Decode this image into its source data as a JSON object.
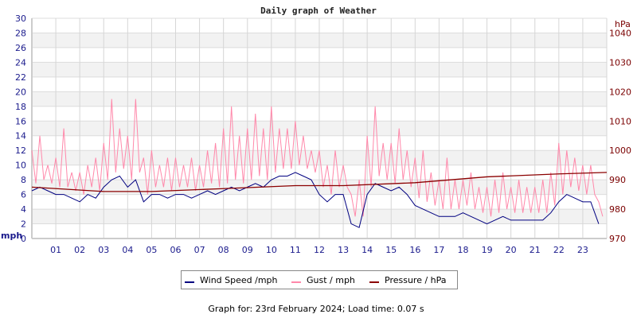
{
  "chart_data": {
    "type": "line",
    "title": "Daily graph of Weather",
    "ylabel_left": "mph",
    "ylabel_right": "hPa",
    "ylim_left": [
      0,
      30
    ],
    "ylim_right": [
      970,
      1045
    ],
    "yticks_left": [
      "0",
      "2",
      "4",
      "6",
      "8",
      "10",
      "12",
      "14",
      "16",
      "18",
      "20",
      "22",
      "24",
      "26",
      "28",
      "30"
    ],
    "yticks_right": [
      "970",
      "980",
      "990",
      "1000",
      "1010",
      "1020",
      "1030",
      "1040"
    ],
    "xticks": [
      "01",
      "02",
      "03",
      "04",
      "05",
      "06",
      "07",
      "08",
      "09",
      "10",
      "11",
      "12",
      "13",
      "14",
      "15",
      "16",
      "17",
      "18",
      "19",
      "20",
      "21",
      "22",
      "23"
    ],
    "xlim_hours": [
      0,
      24
    ],
    "x_step_hours": 0.3333,
    "grid": true,
    "legend_position": "bottom",
    "series": [
      {
        "name": "Wind Speed /mph",
        "color": "#000080",
        "axis": "left",
        "values": [
          6.5,
          7,
          6.5,
          6,
          6,
          5.5,
          5,
          6,
          5.5,
          7,
          8,
          8.5,
          7,
          8,
          5,
          6,
          6,
          5.5,
          6,
          6,
          5.5,
          6,
          6.5,
          6,
          6.5,
          7,
          6.5,
          7,
          7.5,
          7,
          8,
          8.5,
          8.5,
          9,
          8.5,
          8,
          6,
          5,
          6,
          6,
          2,
          1.5,
          6,
          7.5,
          7,
          6.5,
          7,
          6,
          4.5,
          4,
          3.5,
          3,
          3,
          3,
          3.5,
          3,
          2.5,
          2,
          2.5,
          3,
          2.5,
          2.5,
          2.5,
          2.5,
          2.5,
          3.5,
          5,
          6,
          5.5,
          5,
          5,
          2
        ]
      },
      {
        "name": "Gust / mph",
        "color": "#ff88aa",
        "axis": "left",
        "values": [
          12,
          14,
          10,
          11,
          15,
          9,
          9,
          10,
          11,
          13,
          19,
          15,
          14,
          19,
          11,
          12,
          10,
          11,
          11,
          10,
          11,
          10,
          12,
          13,
          15,
          18,
          14,
          15,
          17,
          15,
          18,
          15,
          15,
          16,
          14,
          12,
          12,
          10,
          12,
          10,
          6,
          8,
          14,
          18,
          13,
          13,
          15,
          12,
          11,
          12,
          9,
          8,
          11,
          8,
          8,
          9,
          7,
          7,
          8,
          9,
          7,
          8,
          7,
          7,
          8,
          9,
          13,
          12,
          11,
          10,
          10,
          5
        ]
      },
      {
        "name": "Pressure / hPa",
        "color": "#8b0000",
        "axis": "right",
        "hours": [
          0,
          3,
          5,
          8,
          11,
          13,
          16,
          19,
          22,
          24
        ],
        "values": [
          987.5,
          986,
          986,
          987,
          988,
          988,
          989,
          991,
          992,
          992.5
        ]
      }
    ]
  },
  "footer": "Graph for: 23rd February 2024; Load time: 0.07 s"
}
